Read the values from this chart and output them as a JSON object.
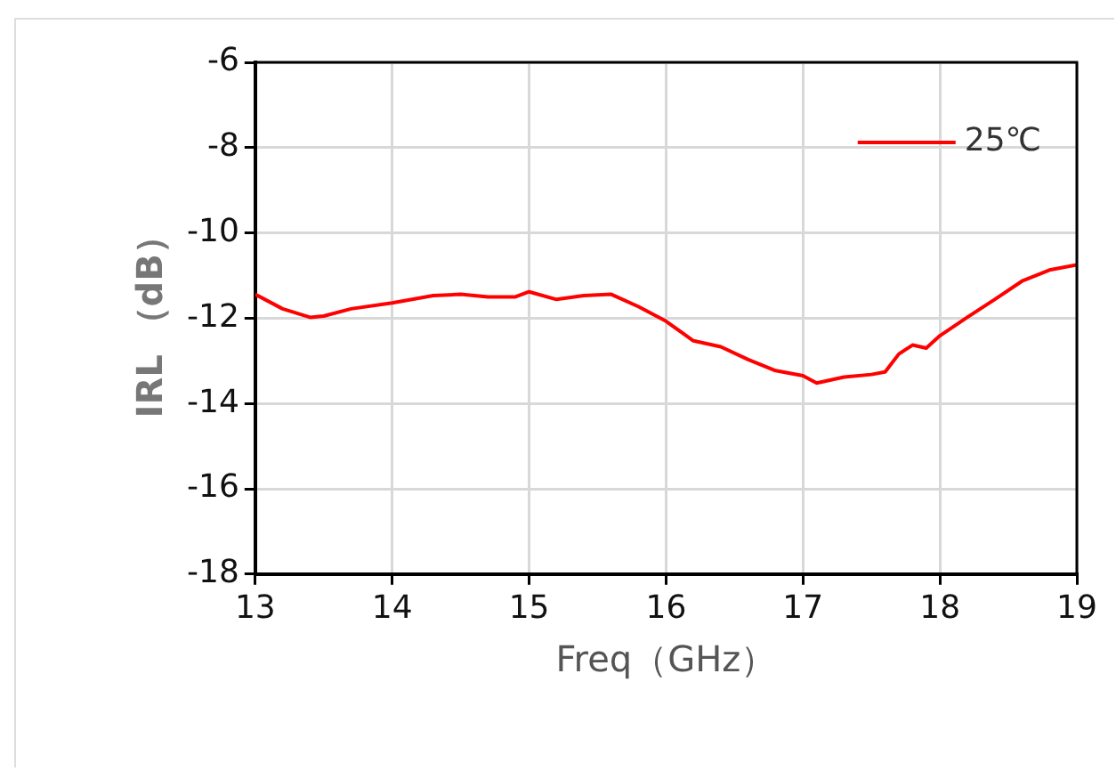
{
  "chart_data": {
    "type": "line",
    "xlabel": "Freq（GHz）",
    "ylabel": "IRL （dB）",
    "x": [
      13.0,
      13.2,
      13.4,
      13.5,
      13.7,
      14.0,
      14.3,
      14.5,
      14.7,
      14.9,
      15.0,
      15.2,
      15.4,
      15.6,
      15.8,
      16.0,
      16.2,
      16.4,
      16.6,
      16.8,
      17.0,
      17.1,
      17.3,
      17.5,
      17.6,
      17.7,
      17.8,
      17.9,
      18.0,
      18.2,
      18.4,
      18.6,
      18.8,
      19.0
    ],
    "series": [
      {
        "name": "25℃",
        "color": "#ff0000",
        "values": [
          -11.44,
          -11.78,
          -11.98,
          -11.95,
          -11.78,
          -11.64,
          -11.47,
          -11.44,
          -11.5,
          -11.5,
          -11.38,
          -11.56,
          -11.47,
          -11.44,
          -11.73,
          -12.07,
          -12.53,
          -12.67,
          -12.97,
          -13.23,
          -13.35,
          -13.52,
          -13.38,
          -13.32,
          -13.26,
          -12.84,
          -12.63,
          -12.7,
          -12.41,
          -11.98,
          -11.56,
          -11.13,
          -10.87,
          -10.75
        ]
      }
    ],
    "xlim": [
      13,
      19
    ],
    "xticks": [
      13,
      14,
      15,
      16,
      17,
      18,
      19
    ],
    "ylim": [
      -18,
      -6
    ],
    "yticks": [
      -18,
      -16,
      -14,
      -12,
      -10,
      -8,
      -6
    ],
    "grid": true,
    "legend": "top right",
    "marker": "none",
    "line_style": "solid"
  }
}
